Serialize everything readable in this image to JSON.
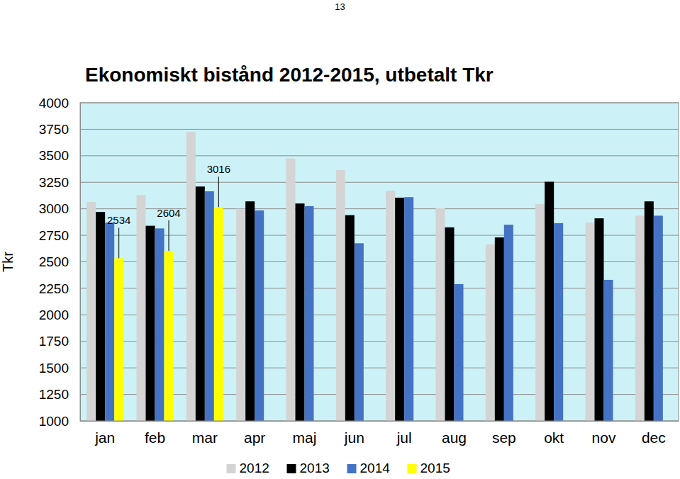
{
  "page_number": "13",
  "chart_data": {
    "type": "bar",
    "title": "Ekonomiskt bistånd 2012-2015, utbetalt Tkr",
    "y_label": "Tkr",
    "categories": [
      "jan",
      "feb",
      "mar",
      "apr",
      "maj",
      "jun",
      "jul",
      "aug",
      "sep",
      "okt",
      "nov",
      "dec"
    ],
    "series": [
      {
        "name": "2012",
        "color": "#d4d4d4",
        "values": [
          3065,
          3130,
          3725,
          3000,
          3475,
          3365,
          3170,
          3005,
          2665,
          3045,
          2870,
          2935
        ]
      },
      {
        "name": "2013",
        "color": "#000000",
        "values": [
          2970,
          2840,
          3210,
          3070,
          3050,
          2940,
          3105,
          2825,
          2730,
          3255,
          2910,
          3070
        ]
      },
      {
        "name": "2014",
        "color": "#4472c4",
        "values": [
          2870,
          2815,
          3165,
          2985,
          3025,
          2675,
          3110,
          2290,
          2850,
          2865,
          2330,
          2935
        ]
      },
      {
        "name": "2015",
        "color": "#ffff00",
        "data_labels": true,
        "values": [
          2534,
          2604,
          3016,
          null,
          null,
          null,
          null,
          null,
          null,
          null,
          null,
          null
        ]
      }
    ],
    "ylim": [
      1000,
      4000
    ],
    "yticks": [
      1000,
      1250,
      1500,
      1750,
      2000,
      2250,
      2500,
      2750,
      3000,
      3250,
      3500,
      3750,
      4000
    ],
    "grid": true,
    "legend": "bottom"
  }
}
